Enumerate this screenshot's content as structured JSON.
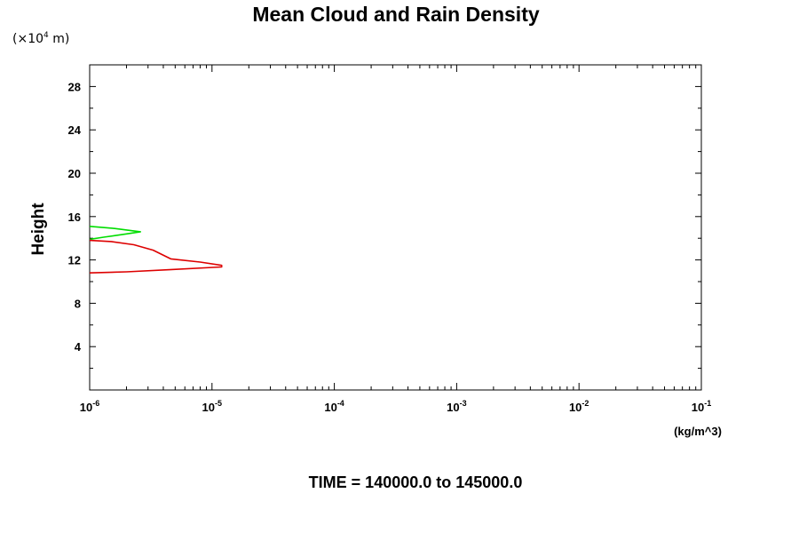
{
  "chart_data": {
    "type": "line",
    "title": "Mean Cloud and Rain Density",
    "ylabel": "Height",
    "yunit_prefix": "(×10",
    "yunit_exp": "4",
    "yunit_suffix": " m)",
    "xunit": "(kg/m^3)",
    "xscale": "log",
    "xlim": [
      1e-06,
      0.1
    ],
    "ylim": [
      0,
      30
    ],
    "yticks": [
      4,
      8,
      12,
      16,
      20,
      24,
      28
    ],
    "xticks": [
      {
        "value": 1e-06,
        "base": "10",
        "exp": "-6"
      },
      {
        "value": 1e-05,
        "base": "10",
        "exp": "-5"
      },
      {
        "value": 0.0001,
        "base": "10",
        "exp": "-4"
      },
      {
        "value": 0.001,
        "base": "10",
        "exp": "-3"
      },
      {
        "value": 0.01,
        "base": "10",
        "exp": "-2"
      },
      {
        "value": 0.1,
        "base": "10",
        "exp": "-1"
      }
    ],
    "grid": false,
    "footer": "TIME = 140000.0 to 145000.0",
    "series": [
      {
        "color": "#00dd00",
        "points": [
          [
            1e-06,
            15.1
          ],
          [
            1.6e-06,
            14.9
          ],
          [
            2.6e-06,
            14.6
          ],
          [
            2e-06,
            14.4
          ],
          [
            1.3e-06,
            14.1
          ],
          [
            1e-06,
            13.9
          ]
        ]
      },
      {
        "color": "#dd0000",
        "points": [
          [
            1e-06,
            13.8
          ],
          [
            1.5e-06,
            13.7
          ],
          [
            2.3e-06,
            13.4
          ],
          [
            3.3e-06,
            12.9
          ],
          [
            4.6e-06,
            12.1
          ],
          [
            8e-06,
            11.8
          ],
          [
            1.2e-05,
            11.5
          ],
          [
            1.2e-05,
            11.35
          ],
          [
            4.5e-06,
            11.1
          ],
          [
            2e-06,
            10.9
          ],
          [
            1e-06,
            10.8
          ]
        ]
      }
    ]
  }
}
